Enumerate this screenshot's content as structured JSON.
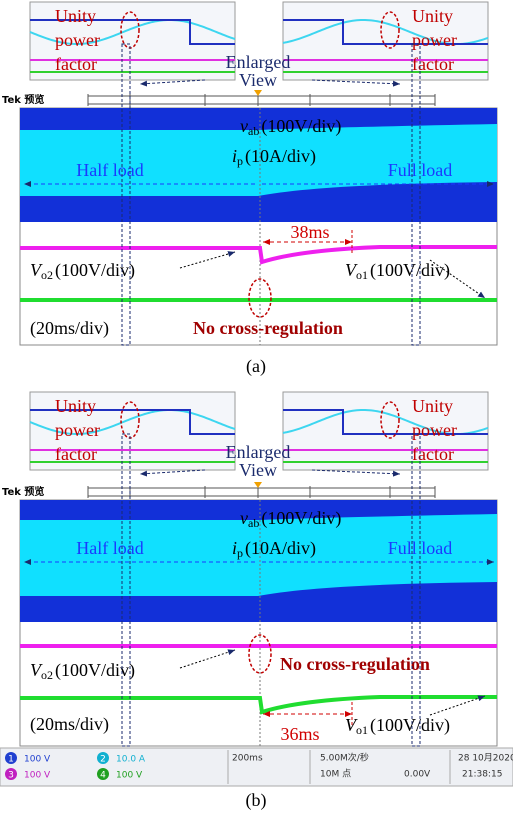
{
  "panels": [
    {
      "label": "(a)",
      "insets": [
        {
          "annotation": [
            "Unity",
            "power",
            "factor"
          ]
        },
        {
          "annotation": [
            "Unity",
            "power",
            "factor"
          ]
        }
      ],
      "enlarged": [
        "Enlarged",
        "View"
      ],
      "scope_header": "Tek 预览",
      "vab": {
        "symbol": "v",
        "subscript": "ab",
        "scale": "(100V/div)"
      },
      "ip": {
        "symbol": "i",
        "subscript": "p",
        "scale": "(10A/div)"
      },
      "half": "Half load",
      "full": "Full load",
      "recovery": "38ms",
      "vo2": {
        "symbol": "V",
        "subscript": "o2",
        "scale": "(100V/div)"
      },
      "vo1": {
        "symbol": "V",
        "subscript": "o1",
        "scale": "(100V/div)"
      },
      "timebase": "(20ms/div)",
      "note": "No cross-regulation"
    },
    {
      "label": "(b)",
      "insets": [
        {
          "annotation": [
            "Unity",
            "power",
            "factor"
          ]
        },
        {
          "annotation": [
            "Unity",
            "power",
            "factor"
          ]
        }
      ],
      "enlarged": [
        "Enlarged",
        "View"
      ],
      "scope_header": "Tek 预览",
      "vab": {
        "symbol": "v",
        "subscript": "ab",
        "scale": "(100V/div)"
      },
      "ip": {
        "symbol": "i",
        "subscript": "p",
        "scale": "(10A/div)"
      },
      "half": "Half load",
      "full": "Full load",
      "recovery": "36ms",
      "vo2": {
        "symbol": "V",
        "subscript": "o2",
        "scale": "(100V/div)"
      },
      "vo1": {
        "symbol": "V",
        "subscript": "o1",
        "scale": "(100V/div)"
      },
      "timebase": "(20ms/div)",
      "note": "No cross-regulation"
    }
  ],
  "status_bar": {
    "ch1": [
      "1",
      "100 V"
    ],
    "ch2": [
      "2",
      "10.0 A"
    ],
    "ch3": [
      "3",
      "100 V"
    ],
    "ch4": [
      "4",
      "100 V"
    ],
    "timebase": "200ms",
    "rate": "5.00M次/秒",
    "points": "10M 点",
    "trigger": "0.00V",
    "date": "28 10月2020",
    "time": "21:38:15"
  }
}
